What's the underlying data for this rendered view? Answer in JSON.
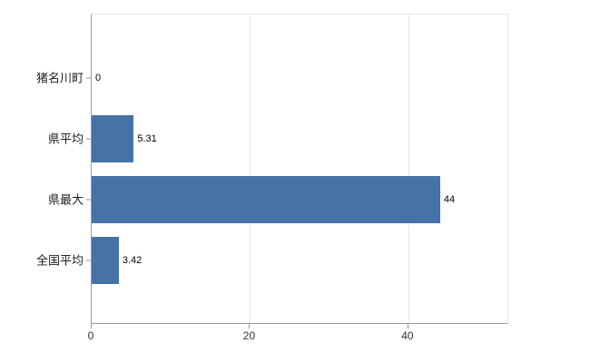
{
  "chart_data": {
    "type": "bar",
    "orientation": "horizontal",
    "title": "",
    "xlabel": "",
    "ylabel": "",
    "categories": [
      "猪名川町",
      "県平均",
      "県最大",
      "全国平均"
    ],
    "values": [
      0,
      5.31,
      44,
      3.42
    ],
    "value_labels": [
      "0",
      "5.31",
      "44",
      "3.42"
    ],
    "x_ticks": [
      0,
      20,
      40
    ],
    "x_tick_labels": [
      "0",
      "20",
      "40"
    ],
    "xlim": [
      0,
      52.5
    ],
    "bar_color": "#4572a7",
    "grid": true,
    "legend": false,
    "background_color": "#ffffff",
    "axis_line_color": "#9a9a9a",
    "gridline_color": "#e6e6e6"
  }
}
